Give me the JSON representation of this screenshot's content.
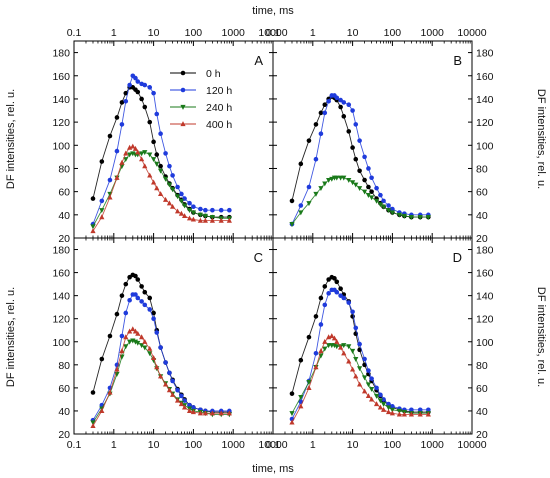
{
  "figure": {
    "top_xlabel": "time, ms",
    "bottom_xlabel": "time, ms",
    "left_ylabel": "DF intensities, rel. u.",
    "right_ylabel": "DF intensities, rel. u."
  },
  "chart_data": [
    {
      "type": "line",
      "panel": "A",
      "x_scale": "log",
      "xlim": [
        0.1,
        10000
      ],
      "ylim": [
        20,
        190
      ],
      "x_ticks": [
        "0.1",
        "1",
        "10",
        "100",
        "1000",
        "10000"
      ],
      "y_ticks": [
        "20",
        "40",
        "60",
        "80",
        "100",
        "120",
        "140",
        "160",
        "180"
      ],
      "xlabel": "time, ms",
      "ylabel": "DF intensities, rel. u.",
      "legend_position": "top-center",
      "series": [
        {
          "name": "0 h",
          "color": "#000000",
          "marker": "circle",
          "x": [
            0.3,
            0.5,
            0.8,
            1.2,
            1.6,
            2.0,
            2.5,
            3.0,
            3.5,
            4.0,
            5.0,
            6.0,
            8.0,
            10,
            12,
            15,
            20,
            25,
            30,
            40,
            50,
            60,
            80,
            100,
            150,
            200,
            300,
            500,
            800
          ],
          "y": [
            54,
            86,
            108,
            124,
            137,
            145,
            150,
            150,
            148,
            146,
            140,
            133,
            120,
            103,
            92,
            82,
            73,
            67,
            63,
            57,
            53,
            49,
            45,
            42,
            40,
            39,
            38,
            38,
            38
          ]
        },
        {
          "name": "120 h",
          "color": "#1f3bdc",
          "marker": "circle",
          "x": [
            0.3,
            0.5,
            0.8,
            1.2,
            1.6,
            2.0,
            2.5,
            3.0,
            3.5,
            4.0,
            5.0,
            6.0,
            8.0,
            10,
            12,
            15,
            20,
            25,
            30,
            40,
            50,
            60,
            80,
            100,
            150,
            200,
            300,
            500,
            800
          ],
          "y": [
            32,
            52,
            70,
            95,
            118,
            138,
            152,
            160,
            158,
            155,
            153,
            152,
            150,
            145,
            127,
            110,
            93,
            82,
            74,
            64,
            58,
            54,
            50,
            47,
            45,
            44,
            44,
            44,
            44
          ]
        },
        {
          "name": "240 h",
          "color": "#1a7a1a",
          "marker": "triangle-down",
          "x": [
            0.3,
            0.5,
            0.8,
            1.2,
            1.6,
            2.0,
            2.5,
            3.0,
            3.5,
            4.0,
            5.0,
            6.0,
            8.0,
            10,
            12,
            15,
            20,
            25,
            30,
            40,
            50,
            60,
            80,
            100,
            150,
            200,
            300,
            500,
            800
          ],
          "y": [
            30,
            44,
            58,
            72,
            82,
            88,
            92,
            93,
            92,
            92,
            93,
            94,
            92,
            88,
            84,
            78,
            71,
            66,
            62,
            56,
            52,
            48,
            44,
            42,
            40,
            39,
            38,
            37,
            37
          ]
        },
        {
          "name": "400 h",
          "color": "#c0392b",
          "marker": "triangle-up",
          "x": [
            0.3,
            0.5,
            0.8,
            1.2,
            1.6,
            2.0,
            2.5,
            3.0,
            3.5,
            4.0,
            5.0,
            6.0,
            8.0,
            10,
            12,
            15,
            20,
            25,
            30,
            40,
            50,
            60,
            80,
            100,
            150,
            200,
            300,
            500,
            800
          ],
          "y": [
            26,
            38,
            55,
            72,
            85,
            93,
            98,
            99,
            97,
            94,
            88,
            82,
            74,
            68,
            63,
            58,
            53,
            50,
            47,
            43,
            41,
            39,
            37,
            36,
            35,
            35,
            35,
            35,
            35
          ]
        }
      ]
    },
    {
      "type": "line",
      "panel": "B",
      "x_scale": "log",
      "xlim": [
        0.1,
        10000
      ],
      "ylim": [
        20,
        190
      ],
      "x_ticks": [
        "0.1",
        "1",
        "10",
        "100",
        "1000",
        "10000"
      ],
      "y_ticks": [
        "20",
        "40",
        "60",
        "80",
        "100",
        "120",
        "140",
        "160",
        "180"
      ],
      "series": [
        {
          "name": "0 h",
          "color": "#000000",
          "marker": "circle",
          "x": [
            0.3,
            0.5,
            0.8,
            1.2,
            1.6,
            2.0,
            2.5,
            3.0,
            3.5,
            4.0,
            5.0,
            6.0,
            8.0,
            10,
            12,
            15,
            20,
            25,
            30,
            40,
            50,
            60,
            80,
            100,
            150,
            200,
            300,
            500,
            800
          ],
          "y": [
            52,
            84,
            104,
            118,
            128,
            135,
            140,
            142,
            141,
            139,
            133,
            125,
            112,
            98,
            88,
            78,
            70,
            64,
            60,
            54,
            50,
            47,
            44,
            42,
            40,
            39,
            38,
            38,
            38
          ]
        },
        {
          "name": "120 h",
          "color": "#1f3bdc",
          "marker": "circle",
          "x": [
            0.3,
            0.5,
            0.8,
            1.2,
            1.6,
            2.0,
            2.5,
            3.0,
            3.5,
            4.0,
            5.0,
            6.0,
            8.0,
            10,
            12,
            15,
            20,
            25,
            30,
            40,
            50,
            60,
            80,
            100,
            150,
            200,
            300,
            500,
            800
          ],
          "y": [
            32,
            48,
            64,
            88,
            110,
            128,
            138,
            143,
            143,
            141,
            139,
            137,
            135,
            130,
            118,
            104,
            90,
            80,
            72,
            63,
            57,
            52,
            48,
            45,
            42,
            41,
            40,
            40,
            40
          ]
        },
        {
          "name": "240 h",
          "color": "#1a7a1a",
          "marker": "triangle-down",
          "x": [
            0.3,
            0.5,
            0.8,
            1.2,
            1.6,
            2.0,
            2.5,
            3.0,
            3.5,
            4.0,
            5.0,
            6.0,
            8.0,
            10,
            12,
            15,
            20,
            25,
            30,
            40,
            50,
            60,
            80,
            100,
            150,
            200,
            300,
            500,
            800
          ],
          "y": [
            32,
            42,
            50,
            58,
            63,
            67,
            70,
            71,
            72,
            72,
            72,
            72,
            70,
            68,
            66,
            63,
            60,
            57,
            55,
            52,
            49,
            47,
            44,
            42,
            40,
            39,
            38,
            38,
            38
          ]
        }
      ]
    },
    {
      "type": "line",
      "panel": "C",
      "x_scale": "log",
      "xlim": [
        0.1,
        10000
      ],
      "ylim": [
        20,
        190
      ],
      "x_ticks": [
        "0.1",
        "1",
        "10",
        "100",
        "1000",
        "10000"
      ],
      "y_ticks": [
        "20",
        "40",
        "60",
        "80",
        "100",
        "120",
        "140",
        "160",
        "180"
      ],
      "series": [
        {
          "name": "0 h",
          "color": "#000000",
          "marker": "circle",
          "x": [
            0.3,
            0.5,
            0.8,
            1.2,
            1.6,
            2.0,
            2.5,
            3.0,
            3.5,
            4.0,
            5.0,
            6.0,
            8.0,
            10,
            12,
            15,
            20,
            25,
            30,
            40,
            50,
            60,
            80,
            100,
            150,
            200,
            300,
            500,
            800
          ],
          "y": [
            56,
            85,
            105,
            124,
            140,
            150,
            156,
            158,
            157,
            154,
            148,
            143,
            138,
            125,
            110,
            95,
            82,
            73,
            67,
            59,
            54,
            50,
            45,
            43,
            41,
            40,
            39,
            39,
            39
          ]
        },
        {
          "name": "120 h",
          "color": "#1f3bdc",
          "marker": "circle",
          "x": [
            0.3,
            0.5,
            0.8,
            1.2,
            1.6,
            2.0,
            2.5,
            3.0,
            3.5,
            4.0,
            5.0,
            6.0,
            8.0,
            10,
            12,
            15,
            20,
            25,
            30,
            40,
            50,
            60,
            80,
            100,
            150,
            200,
            300,
            500,
            800
          ],
          "y": [
            32,
            45,
            60,
            80,
            105,
            125,
            136,
            141,
            141,
            138,
            135,
            132,
            128,
            120,
            108,
            95,
            82,
            73,
            66,
            58,
            53,
            49,
            45,
            43,
            41,
            40,
            40,
            40,
            40
          ]
        },
        {
          "name": "240 h",
          "color": "#1a7a1a",
          "marker": "triangle-down",
          "x": [
            0.3,
            0.5,
            0.8,
            1.2,
            1.6,
            2.0,
            2.5,
            3.0,
            3.5,
            4.0,
            5.0,
            6.0,
            8.0,
            10,
            12,
            15,
            20,
            25,
            30,
            40,
            50,
            60,
            80,
            100,
            150,
            200,
            300,
            500,
            800
          ],
          "y": [
            30,
            42,
            55,
            72,
            87,
            96,
            100,
            101,
            100,
            99,
            97,
            95,
            90,
            84,
            77,
            70,
            64,
            59,
            55,
            50,
            47,
            45,
            42,
            40,
            39,
            38,
            37,
            37,
            37
          ]
        },
        {
          "name": "400 h",
          "color": "#c0392b",
          "marker": "triangle-up",
          "x": [
            0.3,
            0.5,
            0.8,
            1.2,
            1.6,
            2.0,
            2.5,
            3.0,
            3.5,
            4.0,
            5.0,
            6.0,
            8.0,
            10,
            12,
            15,
            20,
            25,
            30,
            40,
            50,
            60,
            80,
            100,
            150,
            200,
            300,
            500,
            800
          ],
          "y": [
            27,
            40,
            56,
            76,
            92,
            104,
            109,
            111,
            109,
            107,
            104,
            100,
            94,
            86,
            78,
            70,
            63,
            58,
            54,
            49,
            46,
            43,
            40,
            39,
            38,
            38,
            38,
            38,
            38
          ]
        }
      ]
    },
    {
      "type": "line",
      "panel": "D",
      "x_scale": "log",
      "xlim": [
        0.1,
        10000
      ],
      "ylim": [
        20,
        190
      ],
      "x_ticks": [
        "0.1",
        "1",
        "10",
        "100",
        "1000",
        "10000"
      ],
      "y_ticks": [
        "20",
        "40",
        "60",
        "80",
        "100",
        "120",
        "140",
        "160",
        "180"
      ],
      "xlabel": "time, ms",
      "series": [
        {
          "name": "0 h",
          "color": "#000000",
          "marker": "circle",
          "x": [
            0.3,
            0.5,
            0.8,
            1.2,
            1.6,
            2.0,
            2.5,
            3.0,
            3.5,
            4.0,
            5.0,
            6.0,
            8.0,
            10,
            12,
            15,
            20,
            25,
            30,
            40,
            50,
            60,
            80,
            100,
            150,
            200,
            300,
            500,
            800
          ],
          "y": [
            55,
            84,
            104,
            122,
            138,
            148,
            154,
            156,
            155,
            152,
            146,
            141,
            135,
            122,
            107,
            93,
            80,
            72,
            66,
            58,
            53,
            49,
            45,
            43,
            41,
            40,
            39,
            39,
            39
          ]
        },
        {
          "name": "120 h",
          "color": "#1f3bdc",
          "marker": "circle",
          "x": [
            0.3,
            0.5,
            0.8,
            1.2,
            1.6,
            2.0,
            2.5,
            3.0,
            3.5,
            4.0,
            5.0,
            6.0,
            8.0,
            10,
            12,
            15,
            20,
            25,
            30,
            40,
            50,
            60,
            80,
            100,
            150,
            200,
            300,
            500,
            800
          ],
          "y": [
            33,
            48,
            66,
            90,
            115,
            132,
            142,
            145,
            145,
            143,
            140,
            138,
            134,
            126,
            112,
            98,
            85,
            75,
            68,
            60,
            54,
            50,
            46,
            44,
            42,
            41,
            41,
            41,
            41
          ]
        },
        {
          "name": "240 h",
          "color": "#1a7a1a",
          "marker": "triangle-down",
          "x": [
            0.3,
            0.5,
            0.8,
            1.2,
            1.6,
            2.0,
            2.5,
            3.0,
            3.5,
            4.0,
            5.0,
            6.0,
            8.0,
            10,
            12,
            15,
            20,
            25,
            30,
            40,
            50,
            60,
            80,
            100,
            150,
            200,
            300,
            500,
            800
          ],
          "y": [
            38,
            52,
            65,
            78,
            88,
            94,
            97,
            97,
            97,
            96,
            96,
            97,
            96,
            92,
            85,
            77,
            69,
            63,
            59,
            53,
            49,
            46,
            43,
            41,
            40,
            39,
            38,
            38,
            38
          ]
        },
        {
          "name": "400 h",
          "color": "#c0392b",
          "marker": "triangle-up",
          "x": [
            0.3,
            0.5,
            0.8,
            1.2,
            1.6,
            2.0,
            2.5,
            3.0,
            3.5,
            4.0,
            5.0,
            6.0,
            8.0,
            10,
            12,
            15,
            20,
            25,
            30,
            40,
            50,
            60,
            80,
            100,
            150,
            200,
            300,
            500,
            800
          ],
          "y": [
            30,
            44,
            60,
            78,
            92,
            100,
            104,
            105,
            103,
            100,
            95,
            90,
            83,
            76,
            70,
            63,
            57,
            53,
            50,
            46,
            43,
            41,
            39,
            38,
            37,
            37,
            37,
            37,
            37
          ]
        }
      ]
    }
  ]
}
